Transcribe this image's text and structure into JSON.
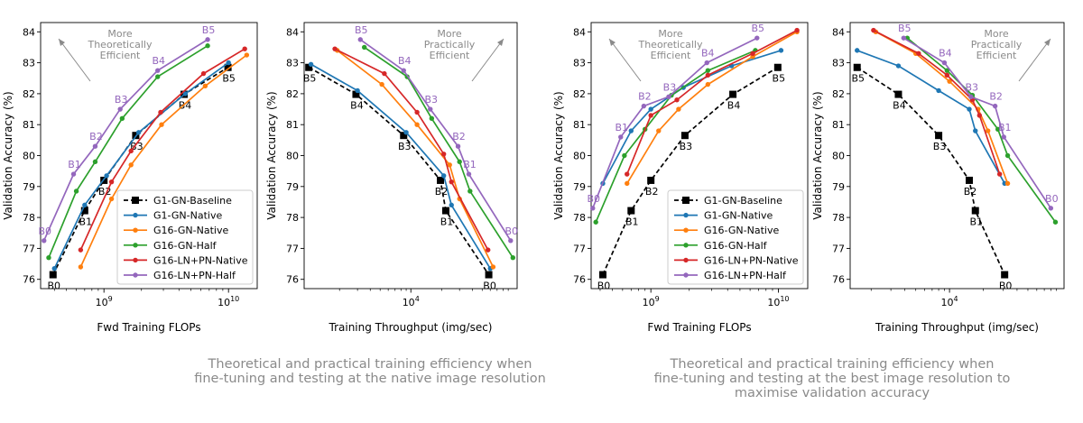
{
  "colors": {
    "G1-GN-Baseline": "#000000",
    "G1-GN-Native": "#1f77b4",
    "G16-GN-Native": "#ff7f0e",
    "G16-GN-Half": "#2ca02c",
    "G16-LN+PN-Native": "#d62728",
    "G16-LN+PN-Half": "#9467bd",
    "annotation": "#8a8a8a"
  },
  "legend": [
    "G1-GN-Baseline",
    "G1-GN-Native",
    "G16-GN-Native",
    "G16-GN-Half",
    "G16-LN+PN-Native",
    "G16-LN+PN-Half"
  ],
  "captions": [
    [
      "Theoretical and practical training efficiency when",
      "fine-tuning and testing at the native image resolution"
    ],
    [
      "Theoretical and practical training efficiency when",
      "fine-tuning and testing at the best image resolution to",
      "maximise validation accuracy"
    ]
  ],
  "chart_data": [
    {
      "type": "line",
      "xlabel": "Fwd Training FLOPs",
      "ylabel": "Validation Accuracy (%)",
      "xscale": "log",
      "xlim": [
        310000000,
        17000000000
      ],
      "ylim": [
        75.7,
        84.3
      ],
      "xticks": [
        {
          "v": 1000000000,
          "label": "10",
          "exp": "9"
        },
        {
          "v": 10000000000,
          "label": "10",
          "exp": "10"
        }
      ],
      "yticks": [
        76,
        77,
        78,
        79,
        80,
        81,
        82,
        83,
        84
      ],
      "arrow": "up-left",
      "annotation": [
        "More",
        "Theoretically",
        "Efficient"
      ],
      "legend_position": "lower-right",
      "series": [
        {
          "name": "G1-GN-Baseline",
          "dashed": true,
          "marker": "square",
          "x": [
            390000000,
            700000000,
            1000000000,
            1800000000,
            4400000000,
            9900000000
          ],
          "y": [
            76.15,
            78.22,
            79.2,
            80.65,
            81.98,
            82.85
          ],
          "labels": [
            "B0",
            "B1",
            "B2",
            "B3",
            "B4",
            "B5"
          ],
          "label_pos": "below"
        },
        {
          "name": "G1-GN-Native",
          "x": [
            400000000,
            700000000,
            1050000000,
            1900000000,
            4500000000,
            10000000000
          ],
          "y": [
            76.35,
            78.4,
            79.35,
            80.75,
            82.0,
            83.0
          ]
        },
        {
          "name": "G16-GN-Native",
          "x": [
            650000000,
            1150000000,
            1650000000,
            2900000000,
            6500000000,
            14000000000
          ],
          "y": [
            76.4,
            78.6,
            79.7,
            81.0,
            82.25,
            83.25
          ]
        },
        {
          "name": "G16-GN-Half",
          "x": [
            360000000,
            600000000,
            850000000,
            1400000000,
            2700000000,
            6800000000
          ],
          "y": [
            76.7,
            78.85,
            79.8,
            81.2,
            82.55,
            83.55
          ]
        },
        {
          "name": "G16-LN+PN-Native",
          "x": [
            650000000,
            1150000000,
            1650000000,
            2850000000,
            6300000000,
            13500000000
          ],
          "y": [
            76.95,
            79.15,
            80.15,
            81.4,
            82.65,
            83.45
          ]
        },
        {
          "name": "G16-LN+PN-Half",
          "x": [
            330000000,
            570000000,
            850000000,
            1350000000,
            2700000000,
            6800000000
          ],
          "y": [
            77.25,
            79.4,
            80.3,
            81.5,
            82.75,
            83.75
          ],
          "labels": [
            "B0",
            "B1",
            "B2",
            "B3",
            "B4",
            "B5"
          ],
          "label_pos": "above"
        }
      ]
    },
    {
      "type": "line",
      "xlabel": "Training Throughput (img/sec)",
      "ylabel": "Validation Accuracy (%)",
      "xscale": "log",
      "xlim": [
        900,
        110000
      ],
      "ylim": [
        75.7,
        84.3
      ],
      "xticks": [
        {
          "v": 10000,
          "label": "10",
          "exp": "4"
        }
      ],
      "yticks": [
        76,
        77,
        78,
        79,
        80,
        81,
        82,
        83,
        84
      ],
      "arrow": "up-right",
      "annotation": [
        "More",
        "Practically",
        "Efficient"
      ],
      "series": [
        {
          "name": "G1-GN-Baseline",
          "dashed": true,
          "marker": "square",
          "x": [
            1000,
            2900,
            8500,
            19500,
            22000,
            58000
          ],
          "y": [
            82.85,
            81.98,
            80.65,
            79.2,
            78.22,
            76.15
          ],
          "labels": [
            "B5",
            "B4",
            "B3",
            "B2",
            "B1",
            "B0"
          ],
          "label_pos": "below"
        },
        {
          "name": "G1-GN-Native",
          "x": [
            1050,
            3000,
            9000,
            21000,
            25000,
            60000
          ],
          "y": [
            82.95,
            82.1,
            80.75,
            79.35,
            78.4,
            76.35
          ]
        },
        {
          "name": "G16-GN-Native",
          "x": [
            1900,
            5200,
            11500,
            24000,
            30000,
            64000
          ],
          "y": [
            83.4,
            82.3,
            81.0,
            79.7,
            78.6,
            76.4
          ]
        },
        {
          "name": "G16-GN-Half",
          "x": [
            3500,
            9200,
            16000,
            30000,
            38000,
            100000
          ],
          "y": [
            83.5,
            82.55,
            81.2,
            79.8,
            78.85,
            76.7
          ]
        },
        {
          "name": "G16-LN+PN-Native",
          "x": [
            1800,
            5500,
            11500,
            21000,
            25000,
            57000
          ],
          "y": [
            83.45,
            82.65,
            81.4,
            80.05,
            79.15,
            76.95
          ]
        },
        {
          "name": "G16-LN+PN-Half",
          "x": [
            3200,
            8500,
            15500,
            29000,
            37000,
            95000
          ],
          "y": [
            83.75,
            82.75,
            81.5,
            80.3,
            79.4,
            77.25
          ],
          "labels": [
            "B5",
            "B4",
            "B3",
            "B2",
            "B1",
            "B0"
          ],
          "label_pos": "above"
        }
      ]
    },
    {
      "type": "line",
      "xlabel": "Fwd Training FLOPs",
      "ylabel": "Validation Accuracy (%)",
      "xscale": "log",
      "xlim": [
        340000000,
        17000000000
      ],
      "ylim": [
        75.7,
        84.3
      ],
      "xticks": [
        {
          "v": 1000000000,
          "label": "10",
          "exp": "9"
        },
        {
          "v": 10000000000,
          "label": "10",
          "exp": "10"
        }
      ],
      "yticks": [
        76,
        77,
        78,
        79,
        80,
        81,
        82,
        83,
        84
      ],
      "arrow": "up-left",
      "annotation": [
        "More",
        "Theoretically",
        "Efficient"
      ],
      "legend_position": "lower-right",
      "series": [
        {
          "name": "G1-GN-Baseline",
          "dashed": true,
          "marker": "square",
          "x": [
            420000000,
            700000000,
            1000000000,
            1850000000,
            4400000000,
            9900000000
          ],
          "y": [
            76.15,
            78.22,
            79.2,
            80.65,
            81.98,
            82.85
          ],
          "labels": [
            "B0",
            "B1",
            "B2",
            "B3",
            "B4",
            "B5"
          ],
          "label_pos": "below"
        },
        {
          "name": "G1-GN-Native",
          "x": [
            420000000,
            700000000,
            1000000000,
            1800000000,
            4300000000,
            10500000000
          ],
          "y": [
            79.1,
            80.8,
            81.5,
            82.2,
            82.9,
            83.4
          ]
        },
        {
          "name": "G16-GN-Native",
          "x": [
            650000000,
            1150000000,
            1650000000,
            2800000000,
            6300000000,
            14000000000
          ],
          "y": [
            79.1,
            80.8,
            81.5,
            82.3,
            83.2,
            84.0
          ]
        },
        {
          "name": "G16-GN-Half",
          "x": [
            370000000,
            620000000,
            900000000,
            1450000000,
            2800000000,
            6600000000
          ],
          "y": [
            77.85,
            80.0,
            80.85,
            81.95,
            82.75,
            83.4
          ]
        },
        {
          "name": "G16-LN+PN-Native",
          "x": [
            650000000,
            1000000000,
            1600000000,
            2800000000,
            6300000000,
            14000000000
          ],
          "y": [
            79.4,
            81.3,
            81.8,
            82.6,
            83.3,
            84.05
          ]
        },
        {
          "name": "G16-LN+PN-Half",
          "x": [
            350000000,
            580000000,
            880000000,
            1380000000,
            2750000000,
            6800000000
          ],
          "y": [
            78.3,
            80.6,
            81.6,
            81.9,
            83.0,
            83.8
          ],
          "labels": [
            "B0",
            "B1",
            "B2",
            "B3",
            "B4",
            "B5"
          ],
          "label_pos": "above"
        }
      ]
    },
    {
      "type": "line",
      "xlabel": "Training Throughput (img/sec)",
      "ylabel": "Validation Accuracy (%)",
      "xscale": "log",
      "xlim": [
        1300,
        105000
      ],
      "ylim": [
        75.7,
        84.3
      ],
      "xticks": [
        {
          "v": 10000,
          "label": "10",
          "exp": "4"
        }
      ],
      "yticks": [
        76,
        77,
        78,
        79,
        80,
        81,
        82,
        83,
        84
      ],
      "arrow": "up-right",
      "annotation": [
        "More",
        "Practically",
        "Efficient"
      ],
      "series": [
        {
          "name": "G1-GN-Baseline",
          "dashed": true,
          "marker": "square",
          "x": [
            1500,
            3500,
            8000,
            15000,
            17000,
            31000
          ],
          "y": [
            82.85,
            81.98,
            80.65,
            79.2,
            78.22,
            76.15
          ],
          "labels": [
            "B5",
            "B4",
            "B3",
            "B2",
            "B1",
            "B0"
          ],
          "label_pos": "below"
        },
        {
          "name": "G1-GN-Native",
          "x": [
            1500,
            3500,
            8000,
            15000,
            17000,
            31000
          ],
          "y": [
            83.4,
            82.9,
            82.1,
            81.5,
            80.8,
            79.1
          ]
        },
        {
          "name": "G16-GN-Native",
          "x": [
            2200,
            5000,
            10000,
            18000,
            22000,
            33000
          ],
          "y": [
            84.0,
            83.3,
            82.4,
            81.5,
            80.8,
            79.1
          ]
        },
        {
          "name": "G16-GN-Half",
          "x": [
            4200,
            9500,
            16000,
            27000,
            33000,
            88000
          ],
          "y": [
            83.8,
            82.75,
            81.95,
            80.85,
            80.0,
            77.85
          ]
        },
        {
          "name": "G16-LN+PN-Native",
          "x": [
            2100,
            5300,
            9500,
            16000,
            18500,
            28000
          ],
          "y": [
            84.05,
            83.3,
            82.6,
            81.8,
            81.3,
            79.4
          ]
        },
        {
          "name": "G16-LN+PN-Half",
          "x": [
            3900,
            9000,
            15500,
            25500,
            30500,
            80000
          ],
          "y": [
            83.8,
            83.0,
            81.9,
            81.6,
            80.6,
            78.3
          ],
          "labels": [
            "B5",
            "B4",
            "B3",
            "B2",
            "B1",
            "B0"
          ],
          "label_pos": "above"
        }
      ]
    }
  ]
}
